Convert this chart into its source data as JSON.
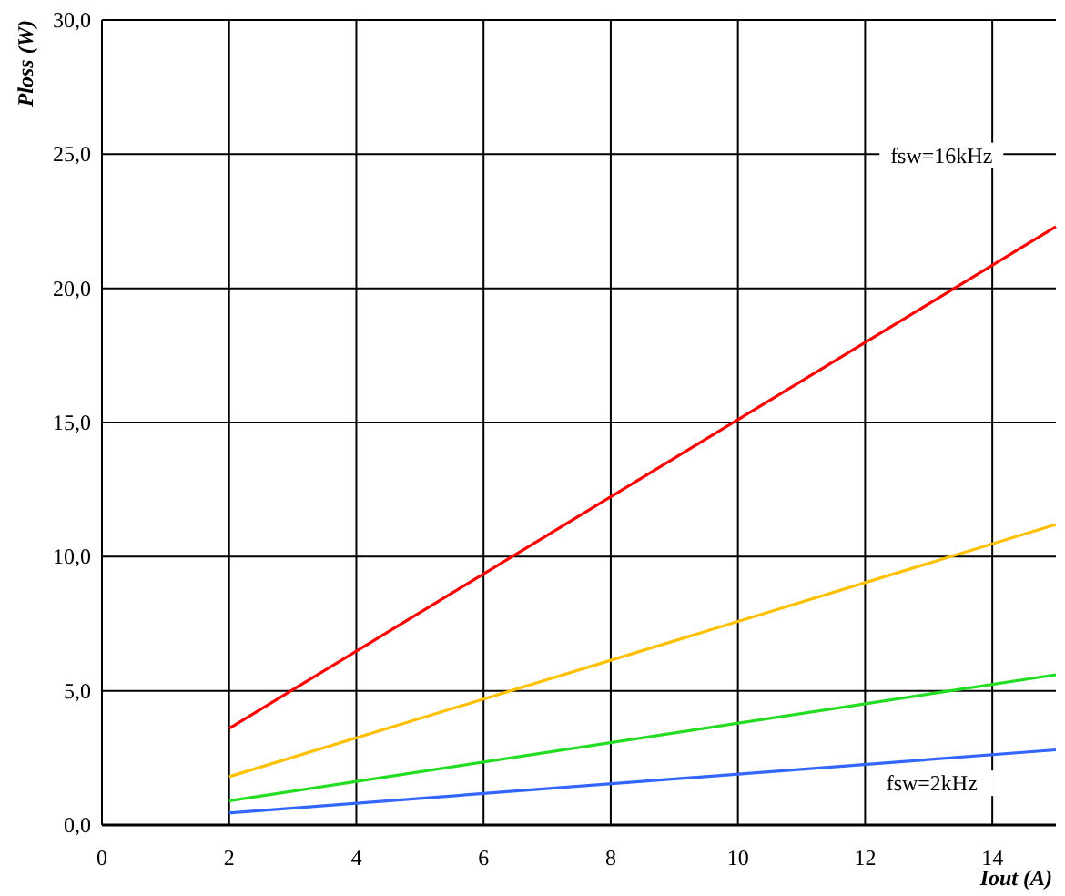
{
  "chart_data": {
    "type": "line",
    "xlabel": "Iout (A)",
    "ylabel": "Ploss (W)",
    "x": [
      2,
      15
    ],
    "series": [
      {
        "color": "#ff0000",
        "values": [
          3.6,
          22.3
        ]
      },
      {
        "color": "#ffc000",
        "values": [
          1.8,
          11.2
        ]
      },
      {
        "color": "#22dd22",
        "values": [
          0.9,
          5.6
        ]
      },
      {
        "color": "#3366ff",
        "values": [
          0.45,
          2.8
        ]
      }
    ],
    "xlim": [
      0,
      15
    ],
    "xticks": [
      0,
      2,
      4,
      6,
      8,
      10,
      12,
      14
    ],
    "ylim": [
      0,
      30
    ],
    "yticks": [
      {
        "value": 0,
        "label": "0,0"
      },
      {
        "value": 5,
        "label": "5,0"
      },
      {
        "value": 10,
        "label": "10,0"
      },
      {
        "value": 15,
        "label": "15,0"
      },
      {
        "value": 20,
        "label": "20,0"
      },
      {
        "value": 25,
        "label": "25,0"
      },
      {
        "value": 30,
        "label": "30,0"
      }
    ],
    "grid": true,
    "marker": "none",
    "line_style": "solid",
    "annotations": [
      "fsw=16kHz",
      "fsw=2kHz"
    ]
  }
}
